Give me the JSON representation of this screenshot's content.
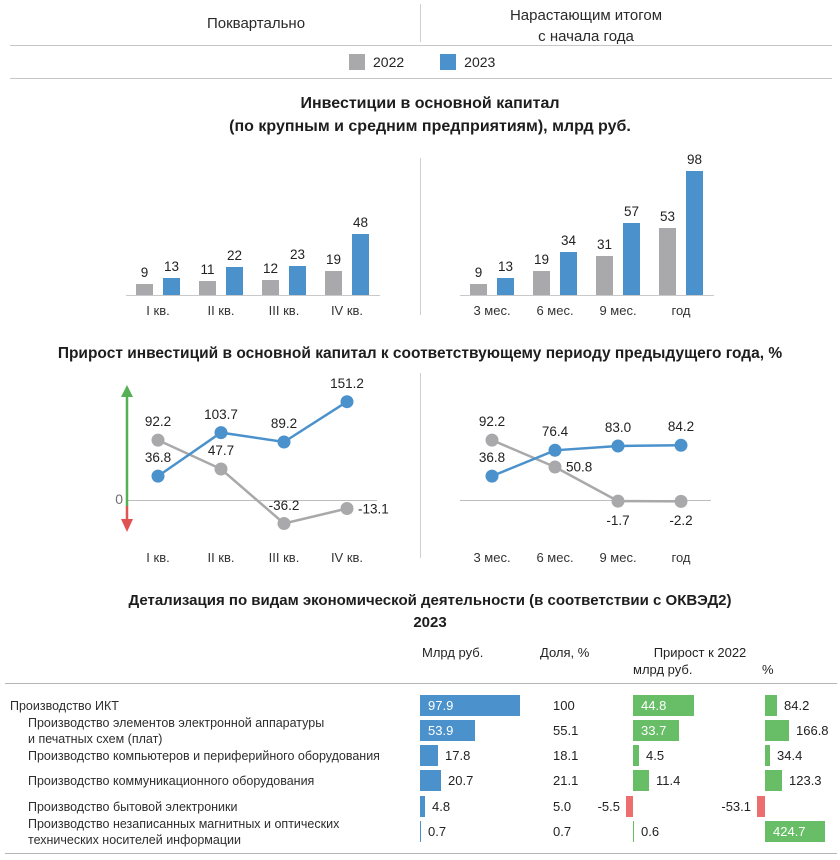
{
  "header": {
    "left_col_title": "Поквартально",
    "right_col_title_line1": "Нарастающим итогом",
    "right_col_title_line2": "с начала года",
    "legend": [
      {
        "year": "2022",
        "color": "#a9a9ab"
      },
      {
        "year": "2023",
        "color": "#4b92cc"
      }
    ]
  },
  "colors": {
    "y2022": "#a9a9ab",
    "y2023": "#4b92cc",
    "positive": "#68bd67",
    "negative": "#ed6e6e",
    "arrow_up": "#55b055",
    "arrow_down": "#e05353"
  },
  "section_invest": {
    "title_line1": "Инвестиции в основной капитал",
    "title_line2": "(по крупным и средним предприятиям), млрд руб."
  },
  "section_growth": {
    "title": "Прирост инвестиций в основной капитал к соответствующему периоду предыдущего года, %"
  },
  "section_detail": {
    "title_line1": "Детализация по видам экономической деятельности (в соответствии с ОКВЭД2)",
    "title_line2": "2023",
    "col_mlrd": "Млрд руб.",
    "col_share": "Доля, %",
    "col_growth": "Прирост к 2022",
    "col_growth_sub_mlrd": "млрд руб.",
    "col_growth_sub_pct": "%"
  },
  "chart_data": [
    {
      "id": "bars_quarterly",
      "type": "bar",
      "title": "Инвестиции в основной капитал (по крупным и средним предприятиям), млрд руб. — поквартально",
      "categories": [
        "I кв.",
        "II кв.",
        "III кв.",
        "IV кв."
      ],
      "series": [
        {
          "name": "2022",
          "color": "#a9a9ab",
          "values": [
            9,
            11,
            12,
            19
          ]
        },
        {
          "name": "2023",
          "color": "#4b92cc",
          "values": [
            13,
            22,
            23,
            48
          ]
        }
      ],
      "value_labels": true,
      "baseline": true,
      "ylim": [
        0,
        100
      ]
    },
    {
      "id": "bars_cumulative",
      "type": "bar",
      "title": "Инвестиции в основной капитал (по крупным и средним предприятиям), млрд руб. — нарастающим итогом с начала года",
      "categories": [
        "3 мес.",
        "6 мес.",
        "9 мес.",
        "год"
      ],
      "series": [
        {
          "name": "2022",
          "color": "#a9a9ab",
          "values": [
            9,
            19,
            31,
            53
          ]
        },
        {
          "name": "2023",
          "color": "#4b92cc",
          "values": [
            13,
            34,
            57,
            98
          ]
        }
      ],
      "value_labels": true,
      "baseline": true,
      "ylim": [
        0,
        100
      ]
    },
    {
      "id": "lines_quarterly",
      "type": "line",
      "title": "Прирост инвестиций, % — поквартально",
      "categories": [
        "I кв.",
        "II кв.",
        "III кв.",
        "IV кв."
      ],
      "zero_line": true,
      "trend_arrows": true,
      "zero_axis_label": "0",
      "series": [
        {
          "name": "2022",
          "color": "#a9a9ab",
          "values": [
            92.2,
            47.7,
            -36.2,
            -13.1
          ],
          "labels": [
            "92.2",
            "47.7",
            "-36.2",
            "-13.1"
          ],
          "label_pos": [
            "above",
            "above",
            "above",
            "right"
          ]
        },
        {
          "name": "2023",
          "color": "#4b92cc",
          "values": [
            36.8,
            103.7,
            89.2,
            151.2
          ],
          "labels": [
            "36.8",
            "103.7",
            "89.2",
            "151.2"
          ],
          "label_pos": [
            "above",
            "above",
            "above",
            "above"
          ]
        }
      ]
    },
    {
      "id": "lines_cumulative",
      "type": "line",
      "title": "Прирост инвестиций, % — нарастающим итогом с начала года",
      "categories": [
        "3 мес.",
        "6 мес.",
        "9 мес.",
        "год"
      ],
      "zero_line": true,
      "trend_arrows": false,
      "series": [
        {
          "name": "2022",
          "color": "#a9a9ab",
          "values": [
            92.2,
            50.8,
            -1.7,
            -2.2
          ],
          "labels": [
            "92.2",
            "50.8",
            "-1.7",
            "-2.2"
          ],
          "label_pos": [
            "above",
            "right",
            "below",
            "below"
          ]
        },
        {
          "name": "2023",
          "color": "#4b92cc",
          "values": [
            36.8,
            76.4,
            83.0,
            84.2
          ],
          "labels": [
            "36.8",
            "76.4",
            "83.0",
            "84.2"
          ],
          "label_pos": [
            "above",
            "above",
            "above",
            "above"
          ]
        }
      ]
    },
    {
      "id": "detail_table",
      "type": "table",
      "title": "Детализация по видам экономической деятельности (в соответствии с ОКВЭД2), 2023",
      "columns": [
        "Млрд руб.",
        "Доля, %",
        "Прирост к 2022, млрд руб.",
        "Прирост к 2022, %"
      ],
      "rows": [
        {
          "name_lines": [
            "Производство ИКТ"
          ],
          "indent": false,
          "mlrd": 97.9,
          "mlrd_label": "97.9",
          "share_label": "100",
          "growth_mlrd": 44.8,
          "growth_mlrd_label": "44.8",
          "growth_pct": 84.2,
          "growth_pct_label": "84.2"
        },
        {
          "name_lines": [
            "Производство элементов электронной аппаратуры",
            "и печатных схем (плат)"
          ],
          "indent": true,
          "mlrd": 53.9,
          "mlrd_label": "53.9",
          "share_label": "55.1",
          "growth_mlrd": 33.7,
          "growth_mlrd_label": "33.7",
          "growth_pct": 166.8,
          "growth_pct_label": "166.8"
        },
        {
          "name_lines": [
            "Производство компьютеров и периферийного оборудования"
          ],
          "indent": true,
          "mlrd": 17.8,
          "mlrd_label": "17.8",
          "share_label": "18.1",
          "growth_mlrd": 4.5,
          "growth_mlrd_label": "4.5",
          "growth_pct": 34.4,
          "growth_pct_label": "34.4"
        },
        {
          "name_lines": [
            "Производство коммуникационного оборудования"
          ],
          "indent": true,
          "mlrd": 20.7,
          "mlrd_label": "20.7",
          "share_label": "21.1",
          "growth_mlrd": 11.4,
          "growth_mlrd_label": "11.4",
          "growth_pct": 123.3,
          "growth_pct_label": "123.3"
        },
        {
          "name_lines": [
            "Производство бытовой электроники"
          ],
          "indent": true,
          "mlrd": 4.8,
          "mlrd_label": "4.8",
          "share_label": "5.0",
          "growth_mlrd": -5.5,
          "growth_mlrd_label": "-5.5",
          "growth_pct": -53.1,
          "growth_pct_label": "-53.1"
        },
        {
          "name_lines": [
            "Производство незаписанных магнитных и оптических",
            "технических носителей информации"
          ],
          "indent": true,
          "mlrd": 0.7,
          "mlrd_label": "0.7",
          "share_label": "0.7",
          "growth_mlrd": 0.6,
          "growth_mlrd_label": "0.6",
          "growth_pct": 424.7,
          "growth_pct_label": "424.7"
        }
      ]
    }
  ]
}
